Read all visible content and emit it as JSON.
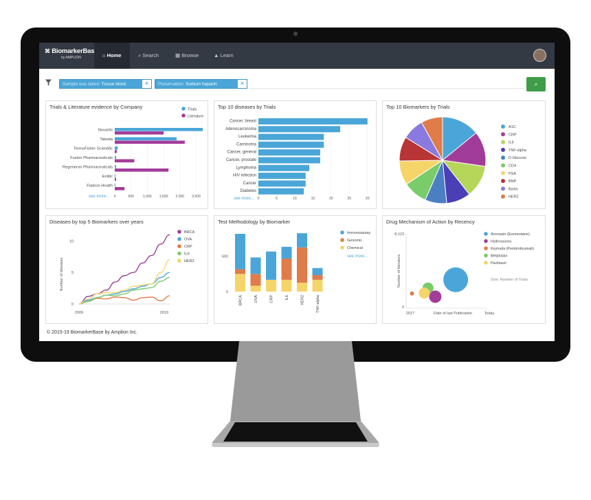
{
  "app": {
    "logo_line1": "BiomarkerBase",
    "logo_line2": "by AMPLION",
    "nav": [
      {
        "label": "Home",
        "icon": "home-icon"
      },
      {
        "label": "Search",
        "icon": "search-icon"
      },
      {
        "label": "Browse",
        "icon": "grid-icon"
      },
      {
        "label": "Learn",
        "icon": "graduation-cap-icon"
      }
    ]
  },
  "filters": [
    {
      "key": "Sample was taken:",
      "value": "Tissue block"
    },
    {
      "key": "Preservation:",
      "value": "Sodium heparin"
    }
  ],
  "footer": "© 2015-19 BiomarkerBase by Amplion Inc.",
  "panels": {
    "trials_lit": "Trials & Literature evidence by Company",
    "top_diseases": "Top 10 diseases by Trials",
    "top_biomarkers": "Top 10 Biomarkers by Trials",
    "diseases_years": "Diseases by top 5 Biomarkers over years",
    "test_method": "Test Methodology by Biomarker",
    "drug_mech": "Drug Mechanism of Action by Recency"
  },
  "colors": {
    "teal": "#4aa6d8",
    "purple": "#a23c9a",
    "orange": "#e07b4a",
    "yellow": "#f5d46a",
    "nav": "#343a44",
    "go": "#3f9c48"
  },
  "chart_data": [
    {
      "type": "bar",
      "title": "Trials & Literature evidence by Company",
      "orientation": "horizontal",
      "categories": [
        "Novartis",
        "Takeda",
        "TermoFisher Scientific",
        "Fusion Pharmaceuticals",
        "Regeneron Pharmaceuticals",
        "Enlitic",
        "Flatiron Health"
      ],
      "series": [
        {
          "name": "Trials",
          "values": [
            2700,
            1900,
            90,
            40,
            40,
            20,
            20
          ]
        },
        {
          "name": "Literature",
          "values": [
            1500,
            2150,
            60,
            600,
            1650,
            40,
            300
          ]
        }
      ],
      "xticks": [
        "0",
        "500",
        "1,000",
        "1,500",
        "2,000",
        "2,500"
      ],
      "xlim": [
        0,
        2700
      ],
      "see_more": "see more..."
    },
    {
      "type": "bar",
      "title": "Top 10 diseases by Trials",
      "orientation": "horizontal",
      "categories": [
        "Cancer, breast",
        "Adenocarcinoma",
        "Leukemia",
        "Carcinoma",
        "Cancer, general",
        "Cancer, prostate",
        "Lymphoma",
        "HIV infection",
        "Cancer",
        "Diabetes"
      ],
      "values": [
        30,
        22.5,
        18,
        18,
        17,
        17,
        14,
        13,
        13,
        12.5
      ],
      "xticks": [
        "0",
        "5",
        "10",
        "15",
        "20",
        "25",
        "30"
      ],
      "xlim": [
        0,
        31
      ],
      "see_more": "see more..."
    },
    {
      "type": "pie",
      "title": "Top 10 Biomarkers by Trials",
      "categories": [
        "A1C",
        "CRP",
        "IL6",
        "TNF-alpha",
        "D-Glucose",
        "CD4",
        "PSA",
        "BNP",
        "Biotin",
        "HER2"
      ],
      "values": [
        14,
        13,
        12,
        9,
        8,
        9,
        9,
        9,
        8,
        8
      ],
      "colors": [
        "#4aa6d8",
        "#a23c9a",
        "#b6d65a",
        "#4a3fb5",
        "#4a7fc4",
        "#7acb6a",
        "#f5d46a",
        "#b83535",
        "#8a7ae0",
        "#e07b4a"
      ]
    },
    {
      "type": "line",
      "title": "Diseases by top 5 Biomarkers over years",
      "ylabel": "Number of diseases",
      "x": [
        2009,
        2010,
        2011,
        2012,
        2013,
        2014,
        2015,
        2016,
        2017,
        2018,
        2019
      ],
      "xticks": [
        "2009",
        "2019"
      ],
      "yticks": [
        "0",
        "5",
        "10"
      ],
      "ylim": [
        0,
        12
      ],
      "series": [
        {
          "name": "BRCA",
          "color": "#a23c9a",
          "values": [
            0,
            1.2,
            1.6,
            2.2,
            3.5,
            4.5,
            5.0,
            6.5,
            7.7,
            9.5,
            11
          ]
        },
        {
          "name": "OVA",
          "color": "#4aa6d8",
          "values": [
            0,
            0.6,
            1.0,
            1.4,
            1.6,
            2.0,
            2.4,
            2.8,
            3.2,
            4.2,
            5.0
          ]
        },
        {
          "name": "CRP",
          "color": "#e07b4a",
          "values": [
            0,
            0.4,
            0.9,
            0.8,
            1.1,
            1.0,
            0.6,
            1.0,
            1.1,
            0.5,
            1.3
          ]
        },
        {
          "name": "IL6",
          "color": "#7acb6a",
          "values": [
            0,
            0.4,
            1.0,
            1.4,
            1.3,
            1.6,
            2.2,
            2.4,
            2.6,
            3.6,
            4.2
          ]
        },
        {
          "name": "HER2",
          "color": "#f5d46a",
          "values": [
            0,
            0.8,
            1.6,
            1.8,
            1.8,
            2.2,
            2.8,
            3.0,
            3.2,
            5.0,
            7.0
          ]
        }
      ]
    },
    {
      "type": "bar",
      "title": "Test Methodology by Biomarker",
      "stacked": true,
      "categories": [
        "BRCA",
        "OVA",
        "CRP",
        "IL6",
        "HER2",
        "TNF-alpha"
      ],
      "series": [
        {
          "name": "Chemical",
          "values": [
            300,
            100,
            200,
            200,
            150,
            200
          ]
        },
        {
          "name": "Genomic",
          "values": [
            80,
            200,
            0,
            360,
            600,
            80
          ]
        },
        {
          "name": "Immunoassay",
          "values": [
            600,
            280,
            480,
            200,
            240,
            120
          ]
        }
      ],
      "yticks": [
        "0",
        "600"
      ],
      "ylim": [
        0,
        1050
      ],
      "see_more": "see more..."
    },
    {
      "type": "scatter",
      "title": "Drug Mechanism of Action by Recency",
      "xlabel": "Date of last Publication",
      "ylabel": "Number of literature",
      "xticks": [
        "2017",
        "Today"
      ],
      "yticks": [
        "0",
        "8,123"
      ],
      "size_label": "Size: Number of Trials",
      "series": [
        {
          "name": "Aromasin (Exemestane)",
          "color": "#4aa6d8",
          "x": 0.68,
          "y": 3100,
          "size": 18
        },
        {
          "name": "Hydroxyurea",
          "color": "#a23c9a",
          "x": 0.4,
          "y": 1250,
          "size": 9
        },
        {
          "name": "Keytruda (Pembrolizumab)",
          "color": "#e07b4a",
          "x": 0.08,
          "y": 1600,
          "size": 3
        },
        {
          "name": "Melphalan",
          "color": "#7acb6a",
          "x": 0.3,
          "y": 2200,
          "size": 8
        },
        {
          "name": "Paclitaxel",
          "color": "#f5d46a",
          "x": 0.25,
          "y": 1650,
          "size": 8
        }
      ]
    }
  ]
}
